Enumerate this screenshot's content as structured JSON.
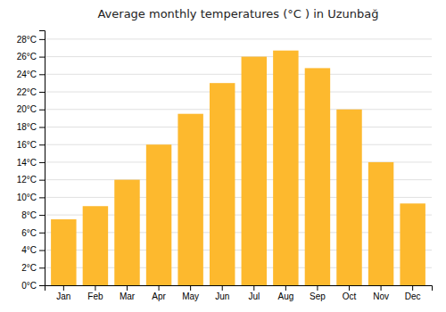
{
  "chart_data": {
    "type": "bar",
    "title": "Average monthly temperatures (°C ) in Uzunbağ",
    "categories": [
      "Jan",
      "Feb",
      "Mar",
      "Apr",
      "May",
      "Jun",
      "Jul",
      "Aug",
      "Sep",
      "Oct",
      "Nov",
      "Dec"
    ],
    "values": [
      7.5,
      9.0,
      12.0,
      16.0,
      19.5,
      23.0,
      26.0,
      26.7,
      24.7,
      20.0,
      14.0,
      9.3
    ],
    "color": "#FDB92E",
    "ylim": [
      0,
      29
    ],
    "yticks": [
      {
        "value": 0,
        "label": "0°C"
      },
      {
        "value": 2,
        "label": "2°C"
      },
      {
        "value": 4,
        "label": "4°C"
      },
      {
        "value": 6,
        "label": "6°C"
      },
      {
        "value": 8,
        "label": "8°C"
      },
      {
        "value": 10,
        "label": "10°C"
      },
      {
        "value": 12,
        "label": "12°C"
      },
      {
        "value": 14,
        "label": "14°C"
      },
      {
        "value": 16,
        "label": "16°C"
      },
      {
        "value": 18,
        "label": "18°C"
      },
      {
        "value": 20,
        "label": "20°C"
      },
      {
        "value": 22,
        "label": "22°C"
      },
      {
        "value": 24,
        "label": "24°C"
      },
      {
        "value": 26,
        "label": "26°C"
      },
      {
        "value": 28,
        "label": "28°C"
      }
    ],
    "grid": true
  }
}
